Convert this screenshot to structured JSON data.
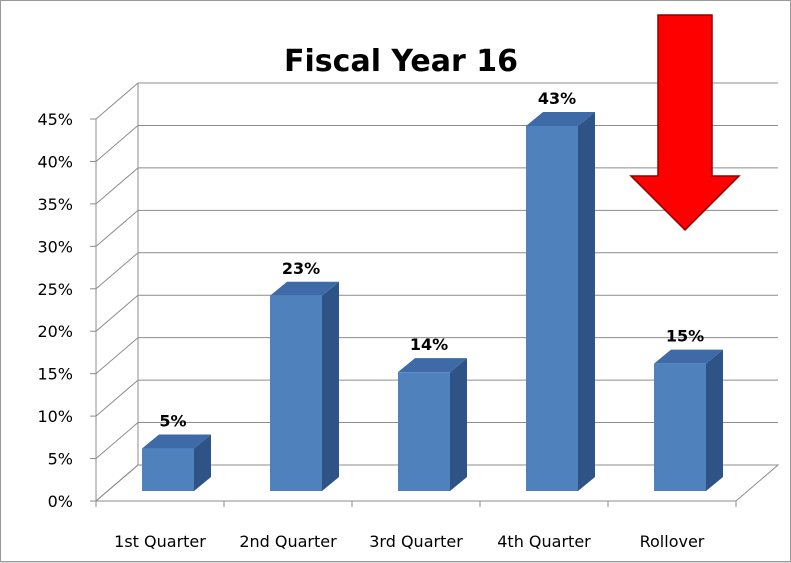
{
  "chart_data": {
    "type": "bar",
    "title": "Fiscal Year 16",
    "categories": [
      "1st Quarter",
      "2nd Quarter",
      "3rd Quarter",
      "4th Quarter",
      "Rollover"
    ],
    "values": [
      5,
      23,
      14,
      43,
      15
    ],
    "data_labels": [
      "5%",
      "23%",
      "14%",
      "43%",
      "15%"
    ],
    "y_ticks": [
      "0%",
      "5%",
      "10%",
      "15%",
      "20%",
      "25%",
      "30%",
      "35%",
      "40%",
      "45%"
    ],
    "ylim": [
      0,
      45
    ],
    "y_unit": "%",
    "grid": true,
    "style": "3d-column",
    "colors": {
      "bar_front": "#4f81bd",
      "bar_side": "#2e5387",
      "bar_top": "#3f6aa8",
      "arrow": "#ff0000"
    }
  },
  "annotation": {
    "arrow": "red-down-arrow",
    "points_to": "Rollover"
  }
}
